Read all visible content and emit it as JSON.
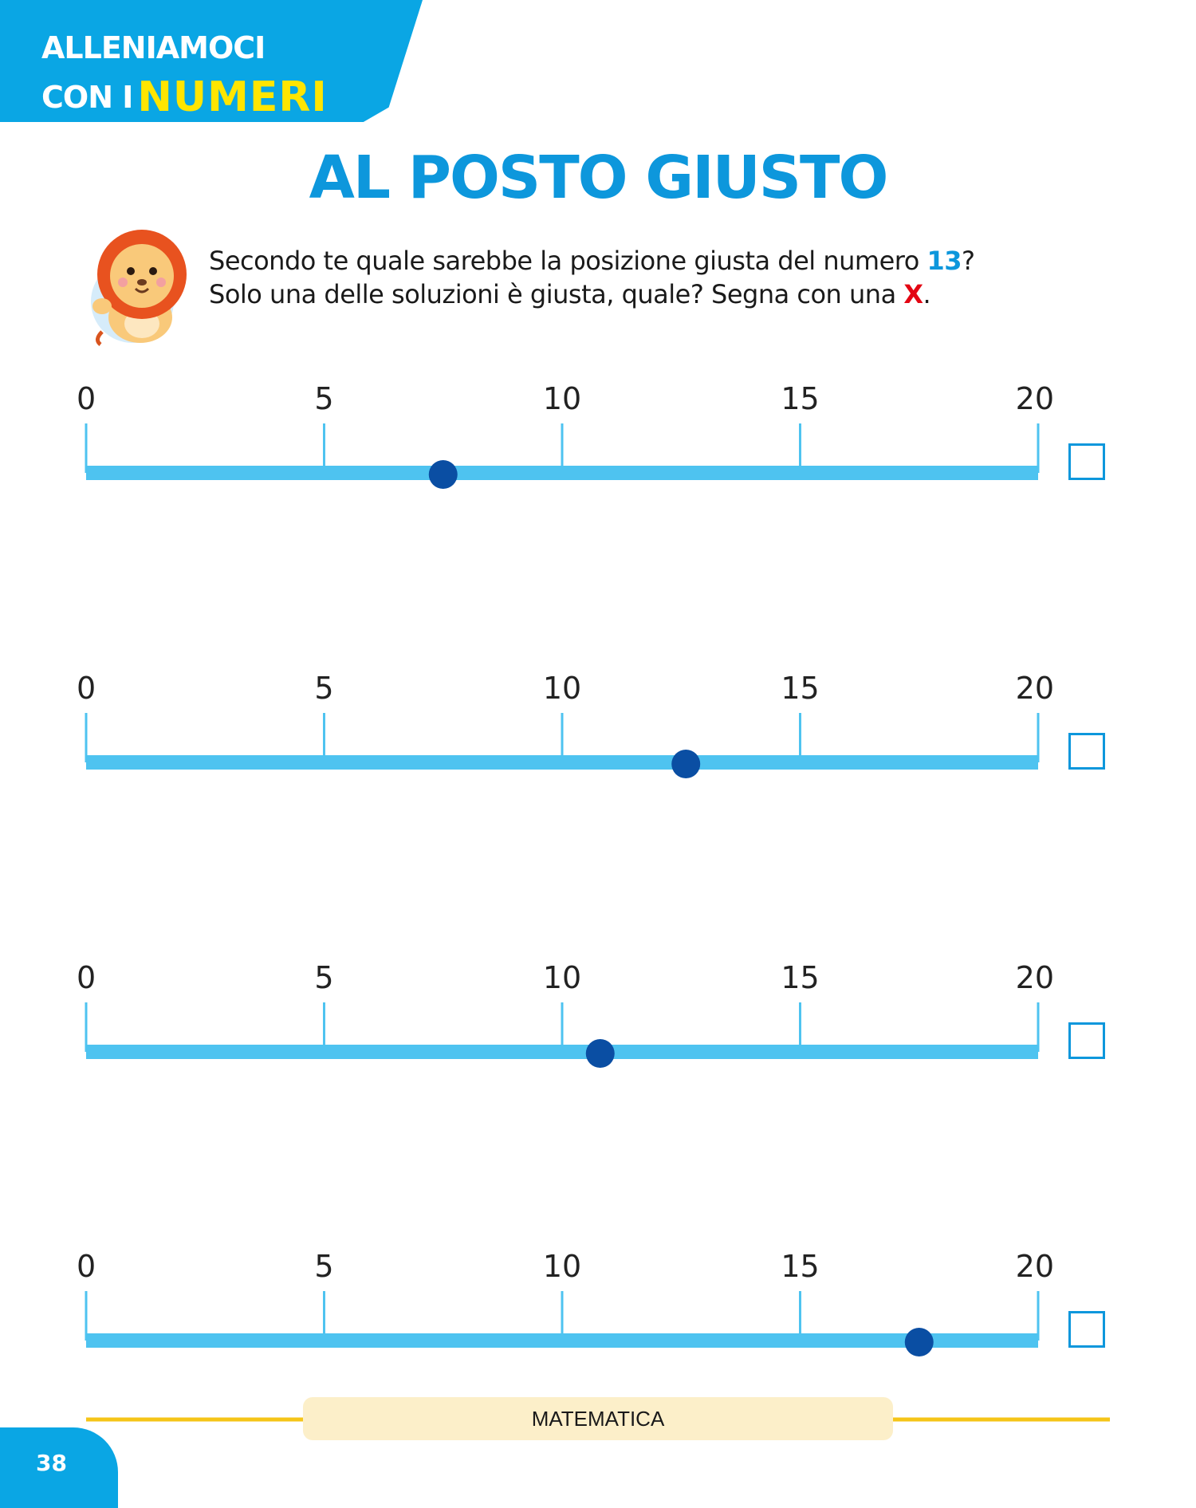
{
  "header": {
    "line1": "ALLENIAMOCI",
    "line2_prefix": "CON I",
    "line2_accent": "NUMERI"
  },
  "title": "AL POSTO GIUSTO",
  "mascot": {
    "icon": "lion-icon"
  },
  "instructions": {
    "line1_before": "Secondo te quale sarebbe la posizione giusta del numero ",
    "number": "13",
    "line1_after": "?",
    "line2_before": "Solo una delle soluzioni è giusta, quale? Segna con una ",
    "mark": "X",
    "line2_after": "."
  },
  "number_lines": [
    {
      "ticks": [
        "0",
        "5",
        "10",
        "15",
        "20"
      ],
      "point": 7.5
    },
    {
      "ticks": [
        "0",
        "5",
        "10",
        "15",
        "20"
      ],
      "point": 12.6
    },
    {
      "ticks": [
        "0",
        "5",
        "10",
        "15",
        "20"
      ],
      "point": 10.8
    },
    {
      "ticks": [
        "0",
        "5",
        "10",
        "15",
        "20"
      ],
      "point": 17.5
    }
  ],
  "scale": {
    "min": 0,
    "max": 20
  },
  "colors": {
    "banner": "#0aa6e4",
    "accent_yellow": "#ffe500",
    "title": "#0d97dc",
    "line": "#4ec3f0",
    "point": "#0a4ea3",
    "mark_red": "#e30613",
    "footer_line": "#f5c518"
  },
  "footer": {
    "subject": "MATEMATICA",
    "page_number": "38"
  }
}
